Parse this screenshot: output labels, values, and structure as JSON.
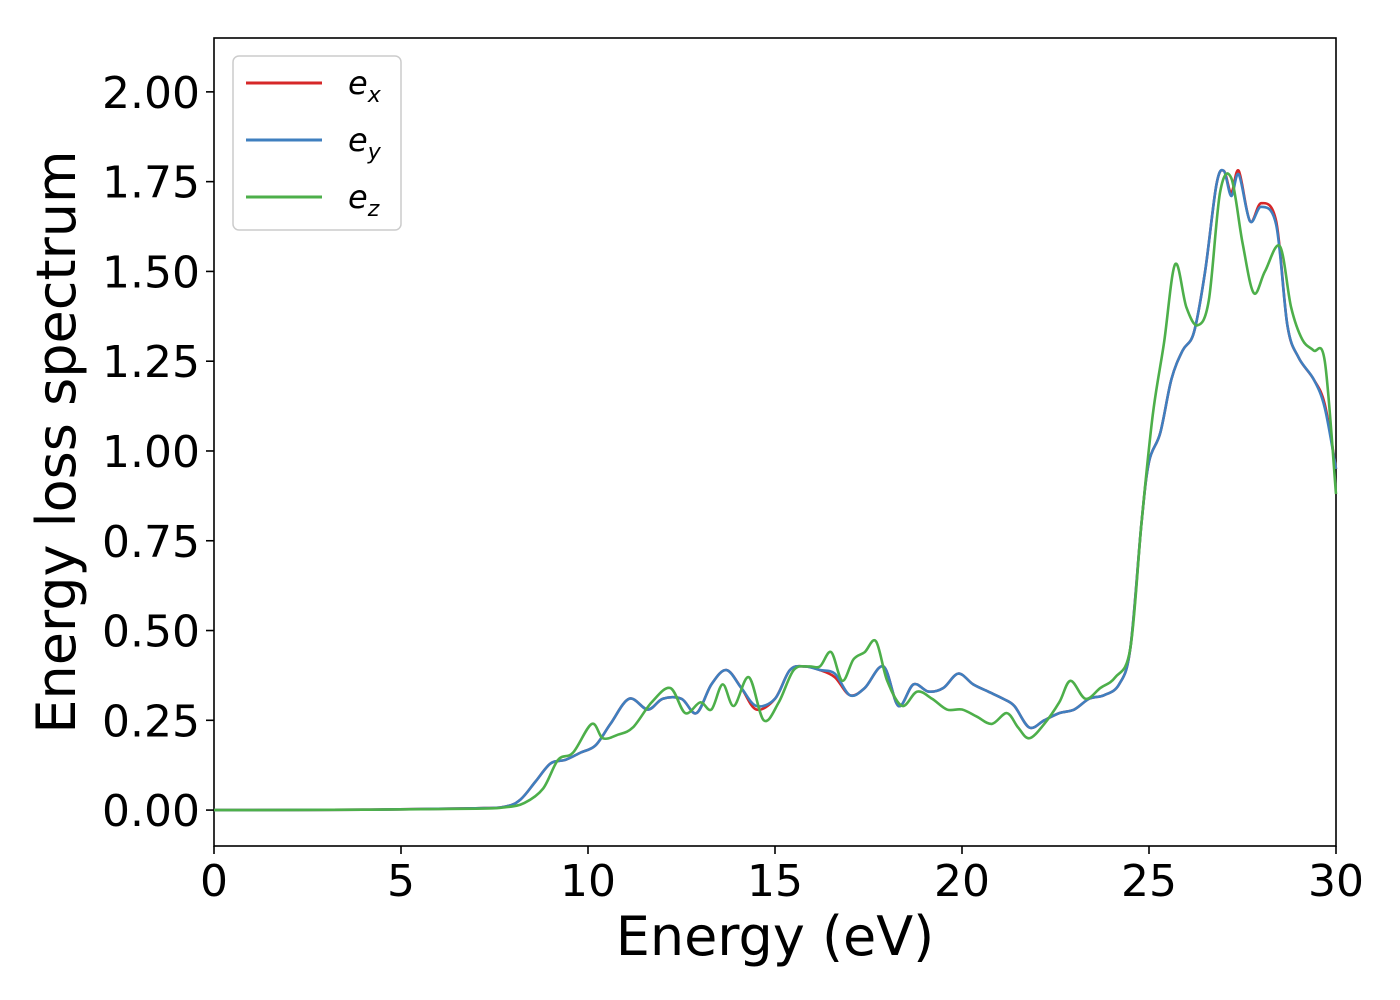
{
  "chart_data": {
    "type": "line",
    "xlabel": "Energy (eV)",
    "ylabel": "Energy loss spectrum",
    "xlim": [
      0,
      30
    ],
    "ylim": [
      -0.1,
      2.15
    ],
    "xticks": [
      0,
      5,
      10,
      15,
      20,
      25,
      30
    ],
    "xtick_labels": [
      "0",
      "5",
      "10",
      "15",
      "20",
      "25",
      "30"
    ],
    "yticks": [
      0,
      0.25,
      0.5,
      0.75,
      1.0,
      1.25,
      1.5,
      1.75,
      2.0
    ],
    "ytick_labels": [
      "0.00",
      "0.25",
      "0.50",
      "0.75",
      "1.00",
      "1.25",
      "1.50",
      "1.75",
      "2.00"
    ],
    "grid": false,
    "legend_position": "top-left",
    "series": [
      {
        "name": "e",
        "subscript": "x",
        "color": "#d62728",
        "x": [
          0,
          4,
          7,
          7.8,
          8.2,
          8.6,
          9.0,
          9.4,
          9.8,
          10.2,
          10.6,
          11.1,
          11.6,
          12.0,
          12.5,
          12.9,
          13.3,
          13.7,
          14.1,
          14.5,
          15.0,
          15.4,
          15.8,
          16.2,
          16.6,
          17.0,
          17.4,
          17.9,
          18.3,
          18.7,
          19.1,
          19.5,
          19.9,
          20.3,
          20.7,
          21.1,
          21.4,
          21.8,
          22.2,
          22.6,
          23.0,
          23.4,
          23.8,
          24.2,
          24.5,
          24.8,
          25.0,
          25.3,
          25.6,
          25.9,
          26.2,
          26.5,
          26.8,
          27.0,
          27.2,
          27.4,
          27.7,
          28.0,
          28.4,
          28.7,
          29.0,
          29.4,
          29.7,
          30.0
        ],
        "values": [
          0,
          0.001,
          0.005,
          0.01,
          0.03,
          0.08,
          0.13,
          0.14,
          0.16,
          0.18,
          0.24,
          0.31,
          0.28,
          0.31,
          0.31,
          0.27,
          0.35,
          0.39,
          0.34,
          0.28,
          0.31,
          0.39,
          0.4,
          0.39,
          0.37,
          0.32,
          0.34,
          0.4,
          0.29,
          0.35,
          0.33,
          0.34,
          0.38,
          0.35,
          0.33,
          0.31,
          0.29,
          0.23,
          0.25,
          0.27,
          0.28,
          0.31,
          0.32,
          0.35,
          0.45,
          0.8,
          0.97,
          1.05,
          1.2,
          1.28,
          1.33,
          1.5,
          1.74,
          1.78,
          1.72,
          1.78,
          1.64,
          1.69,
          1.64,
          1.35,
          1.26,
          1.2,
          1.13,
          0.95
        ]
      },
      {
        "name": "e",
        "subscript": "y",
        "color": "#3f7fbf",
        "x": [
          0,
          4,
          7,
          7.8,
          8.2,
          8.6,
          9.0,
          9.4,
          9.8,
          10.2,
          10.6,
          11.1,
          11.6,
          12.0,
          12.5,
          12.9,
          13.3,
          13.7,
          14.1,
          14.5,
          15.0,
          15.4,
          15.8,
          16.2,
          16.6,
          17.0,
          17.4,
          17.9,
          18.3,
          18.7,
          19.1,
          19.5,
          19.9,
          20.3,
          20.7,
          21.1,
          21.4,
          21.8,
          22.2,
          22.6,
          23.0,
          23.4,
          23.8,
          24.2,
          24.5,
          24.8,
          25.0,
          25.3,
          25.6,
          25.9,
          26.2,
          26.5,
          26.8,
          27.0,
          27.2,
          27.4,
          27.7,
          28.0,
          28.4,
          28.7,
          29.0,
          29.4,
          29.7,
          30.0
        ],
        "values": [
          0,
          0.001,
          0.005,
          0.01,
          0.03,
          0.08,
          0.13,
          0.14,
          0.16,
          0.18,
          0.24,
          0.31,
          0.28,
          0.31,
          0.31,
          0.27,
          0.35,
          0.39,
          0.34,
          0.29,
          0.31,
          0.39,
          0.4,
          0.39,
          0.38,
          0.32,
          0.34,
          0.4,
          0.29,
          0.35,
          0.33,
          0.34,
          0.38,
          0.35,
          0.33,
          0.31,
          0.29,
          0.23,
          0.25,
          0.27,
          0.28,
          0.31,
          0.32,
          0.35,
          0.45,
          0.8,
          0.97,
          1.05,
          1.2,
          1.28,
          1.33,
          1.5,
          1.74,
          1.78,
          1.71,
          1.77,
          1.64,
          1.68,
          1.63,
          1.35,
          1.26,
          1.2,
          1.12,
          0.95
        ]
      },
      {
        "name": "e",
        "subscript": "z",
        "color": "#4daf4a",
        "x": [
          0,
          4,
          7,
          7.8,
          8.3,
          8.8,
          9.2,
          9.6,
          10.1,
          10.4,
          10.8,
          11.2,
          11.7,
          12.2,
          12.6,
          13.0,
          13.3,
          13.6,
          13.9,
          14.3,
          14.7,
          15.1,
          15.5,
          15.9,
          16.2,
          16.5,
          16.8,
          17.1,
          17.4,
          17.7,
          18.0,
          18.4,
          18.8,
          19.2,
          19.6,
          20.0,
          20.4,
          20.8,
          21.2,
          21.5,
          21.8,
          22.2,
          22.6,
          22.9,
          23.3,
          23.7,
          24.1,
          24.5,
          24.8,
          25.1,
          25.4,
          25.7,
          26.0,
          26.3,
          26.6,
          26.9,
          27.2,
          27.5,
          27.8,
          28.1,
          28.5,
          28.8,
          29.1,
          29.4,
          29.7,
          30.0
        ],
        "values": [
          0,
          0.001,
          0.004,
          0.008,
          0.02,
          0.06,
          0.14,
          0.16,
          0.24,
          0.2,
          0.21,
          0.23,
          0.3,
          0.34,
          0.27,
          0.3,
          0.28,
          0.35,
          0.29,
          0.37,
          0.25,
          0.3,
          0.39,
          0.4,
          0.4,
          0.44,
          0.36,
          0.42,
          0.44,
          0.47,
          0.36,
          0.29,
          0.33,
          0.31,
          0.28,
          0.28,
          0.26,
          0.24,
          0.27,
          0.23,
          0.2,
          0.24,
          0.3,
          0.36,
          0.31,
          0.34,
          0.37,
          0.45,
          0.8,
          1.1,
          1.3,
          1.52,
          1.4,
          1.35,
          1.42,
          1.72,
          1.76,
          1.58,
          1.44,
          1.5,
          1.57,
          1.4,
          1.31,
          1.28,
          1.25,
          0.88
        ]
      }
    ]
  }
}
